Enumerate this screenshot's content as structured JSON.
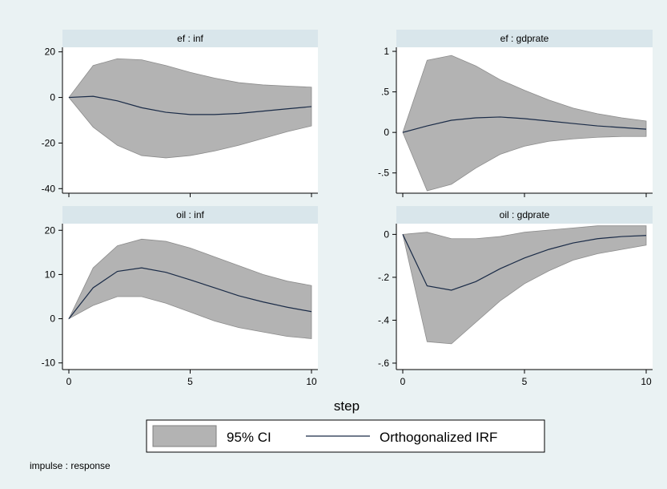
{
  "figure": {
    "xlabel": "step",
    "note": "impulse : response",
    "legend": {
      "ci_label": "95% CI",
      "line_label": "Orthogonalized IRF"
    },
    "colors": {
      "background": "#eaf2f3",
      "panel_bg": "#ffffff",
      "strip_bg": "#d9e6eb",
      "ci_fill": "#b3b3b3",
      "line": "#1a2b47"
    }
  },
  "chart_data": [
    {
      "type": "area",
      "title": "ef : inf",
      "x": [
        0,
        1,
        2,
        3,
        4,
        5,
        6,
        7,
        8,
        9,
        10
      ],
      "xticks": [
        0,
        5,
        10
      ],
      "yticks": [
        -40,
        -20,
        0,
        20
      ],
      "ytick_labels": [
        "-40",
        "-20",
        "0",
        "20"
      ],
      "xlim": [
        0,
        10
      ],
      "ylim": [
        -42,
        22
      ],
      "series": [
        {
          "role": "ci_upper",
          "values": [
            0,
            14,
            17,
            16.5,
            14,
            11,
            8.5,
            6.5,
            5.5,
            5,
            4.5
          ]
        },
        {
          "role": "ci_lower",
          "values": [
            0,
            -13,
            -21,
            -25.5,
            -26.5,
            -25.5,
            -23.5,
            -21,
            -18,
            -15,
            -12.5
          ]
        },
        {
          "role": "irf",
          "values": [
            0,
            0.5,
            -1.5,
            -4.5,
            -6.5,
            -7.5,
            -7.5,
            -7,
            -6,
            -5,
            -4
          ]
        }
      ]
    },
    {
      "type": "area",
      "title": "ef : gdprate",
      "x": [
        0,
        1,
        2,
        3,
        4,
        5,
        6,
        7,
        8,
        9,
        10
      ],
      "xticks": [
        0,
        5,
        10
      ],
      "yticks": [
        -0.5,
        0,
        0.5,
        1
      ],
      "ytick_labels": [
        "-.5",
        "0",
        ".5",
        "1"
      ],
      "xlim": [
        0,
        10
      ],
      "ylim": [
        -0.75,
        1.05
      ],
      "series": [
        {
          "role": "ci_upper",
          "values": [
            0,
            0.89,
            0.95,
            0.82,
            0.65,
            0.52,
            0.4,
            0.3,
            0.23,
            0.18,
            0.14
          ]
        },
        {
          "role": "ci_lower",
          "values": [
            0,
            -0.72,
            -0.64,
            -0.44,
            -0.27,
            -0.17,
            -0.11,
            -0.08,
            -0.06,
            -0.05,
            -0.05
          ]
        },
        {
          "role": "irf",
          "values": [
            0,
            0.08,
            0.15,
            0.18,
            0.19,
            0.17,
            0.14,
            0.11,
            0.08,
            0.06,
            0.04
          ]
        }
      ]
    },
    {
      "type": "area",
      "title": "oil : inf",
      "x": [
        0,
        1,
        2,
        3,
        4,
        5,
        6,
        7,
        8,
        9,
        10
      ],
      "xticks": [
        0,
        5,
        10
      ],
      "yticks": [
        -10,
        0,
        10,
        20
      ],
      "ytick_labels": [
        "-10",
        "0",
        "10",
        "20"
      ],
      "xlim": [
        0,
        10
      ],
      "ylim": [
        -11.5,
        21.5
      ],
      "series": [
        {
          "role": "ci_upper",
          "values": [
            0,
            11.5,
            16.5,
            18,
            17.5,
            16,
            14,
            12,
            10,
            8.5,
            7.5
          ]
        },
        {
          "role": "ci_lower",
          "values": [
            0,
            3,
            5,
            5,
            3.5,
            1.5,
            -0.5,
            -2,
            -3,
            -4,
            -4.5
          ]
        },
        {
          "role": "irf",
          "values": [
            0,
            7,
            10.7,
            11.5,
            10.5,
            8.8,
            7,
            5.2,
            3.8,
            2.6,
            1.6
          ]
        }
      ]
    },
    {
      "type": "area",
      "title": "oil : gdprate",
      "x": [
        0,
        1,
        2,
        3,
        4,
        5,
        6,
        7,
        8,
        9,
        10
      ],
      "xticks": [
        0,
        5,
        10
      ],
      "yticks": [
        -0.6,
        -0.4,
        -0.2,
        0
      ],
      "ytick_labels": [
        "-.6",
        "-.4",
        "-.2",
        "0"
      ],
      "xlim": [
        0,
        10
      ],
      "ylim": [
        -0.63,
        0.05
      ],
      "series": [
        {
          "role": "ci_upper",
          "values": [
            0,
            0.01,
            -0.02,
            -0.02,
            -0.01,
            0.01,
            0.02,
            0.03,
            0.04,
            0.04,
            0.04
          ]
        },
        {
          "role": "ci_lower",
          "values": [
            0,
            -0.5,
            -0.51,
            -0.41,
            -0.31,
            -0.23,
            -0.17,
            -0.12,
            -0.09,
            -0.07,
            -0.05
          ]
        },
        {
          "role": "irf",
          "values": [
            0,
            -0.24,
            -0.26,
            -0.22,
            -0.16,
            -0.11,
            -0.07,
            -0.04,
            -0.02,
            -0.01,
            -0.005
          ]
        }
      ]
    }
  ]
}
